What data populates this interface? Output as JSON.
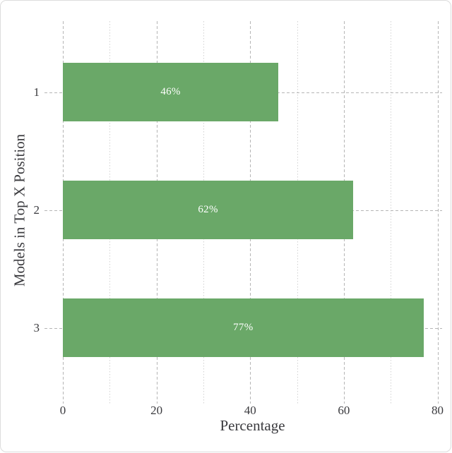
{
  "chart_data": {
    "type": "bar",
    "orientation": "horizontal",
    "categories": [
      "1",
      "2",
      "3"
    ],
    "values": [
      46,
      62,
      77
    ],
    "bar_labels": [
      "46%",
      "62%",
      "77%"
    ],
    "xlabel": "Percentage",
    "ylabel": "Models in Top X Position",
    "xlim": [
      0,
      80
    ],
    "xticks": [
      0,
      20,
      40,
      60,
      80
    ],
    "minor_xticks": [
      10,
      30,
      50,
      70
    ],
    "grid": true,
    "legend": "none",
    "colors": {
      "bar": "#6aa868",
      "bar_label": "#ffffff",
      "tick_text": "#3a3a3e",
      "major_grid": "#b5b5b5",
      "minor_grid": "#d2d2d2",
      "card_border": "#dcdcdc"
    }
  }
}
